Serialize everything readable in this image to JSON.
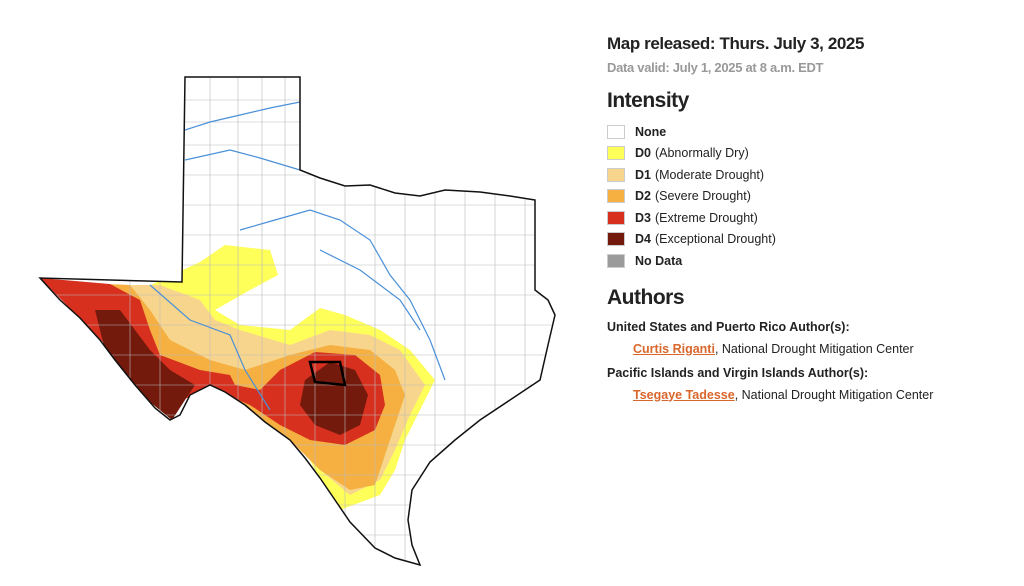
{
  "header": {
    "released": "Map released: Thurs. July 3, 2025",
    "valid": "Data valid: July 1, 2025 at 8 a.m. EDT"
  },
  "legend": {
    "title": "Intensity",
    "items": [
      {
        "code": "None",
        "color": "#ffffff"
      },
      {
        "code": "D0",
        "label": "(Abnormally Dry)",
        "color": "#ffff5a"
      },
      {
        "code": "D1",
        "label": "(Moderate Drought)",
        "color": "#f8d58c"
      },
      {
        "code": "D2",
        "label": "(Severe Drought)",
        "color": "#f5b041"
      },
      {
        "code": "D3",
        "label": "(Extreme Drought)",
        "color": "#d7301f"
      },
      {
        "code": "D4",
        "label": "(Exceptional Drought)",
        "color": "#731a0c"
      },
      {
        "code": "No Data",
        "color": "#9b9b9b"
      }
    ]
  },
  "authors": {
    "title": "Authors",
    "groups": [
      {
        "heading": "United States and Puerto Rico Author(s):",
        "name": "Curtis Riganti",
        "affiliation": ", National Drought Mitigation Center"
      },
      {
        "heading": "Pacific Islands and Virgin Islands Author(s):",
        "name": "Tsegaye Tadesse",
        "affiliation": ", National Drought Mitigation Center"
      }
    ]
  }
}
